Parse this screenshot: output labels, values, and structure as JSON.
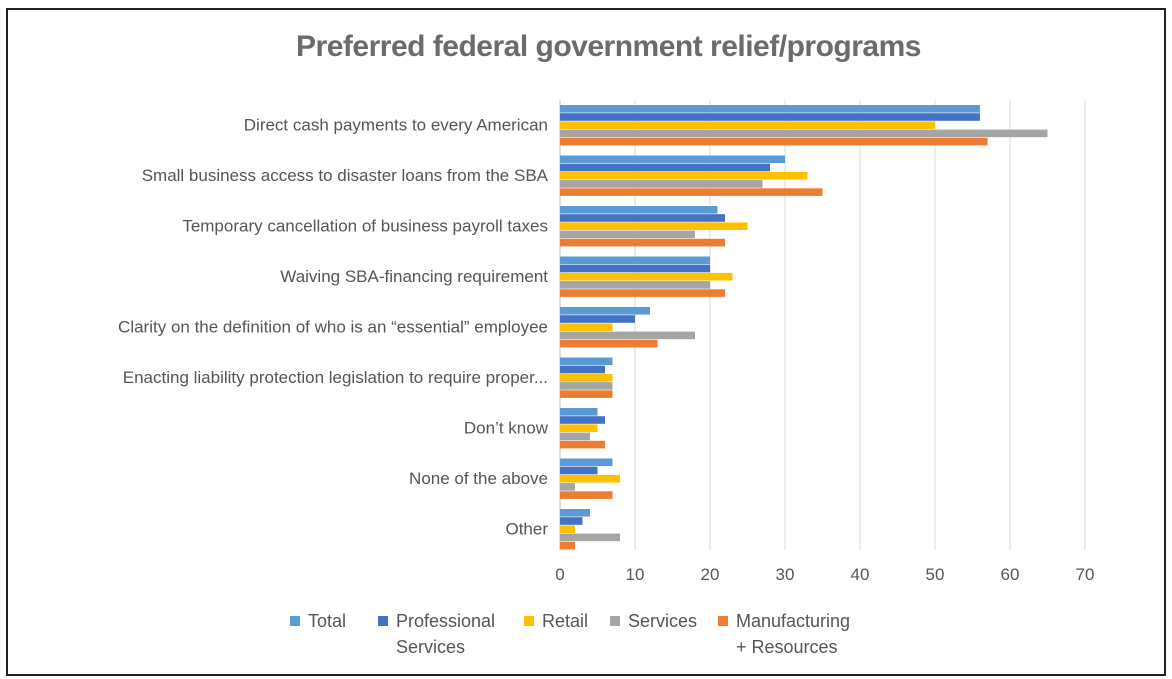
{
  "chart_data": {
    "type": "bar",
    "orientation": "horizontal",
    "title": "Preferred federal government relief/programs",
    "categories": [
      "Direct cash payments to every American",
      "Small business access to disaster loans from the SBA",
      "Temporary cancellation of business payroll taxes",
      "Waiving SBA-financing requirement",
      "Clarity on the definition of who is an “essential” employee",
      "Enacting liability protection legislation to require proper...",
      "Don’t know",
      "None of the above",
      "Other"
    ],
    "series": [
      {
        "name": "Total",
        "color": "#5B9BD5",
        "values": [
          56,
          30,
          21,
          20,
          12,
          7,
          5,
          7,
          4
        ]
      },
      {
        "name": "Professional Services",
        "color": "#4472C4",
        "values": [
          56,
          28,
          22,
          20,
          10,
          6,
          6,
          5,
          3
        ]
      },
      {
        "name": "Retail",
        "color": "#FFC000",
        "values": [
          50,
          33,
          25,
          23,
          7,
          7,
          5,
          8,
          2
        ]
      },
      {
        "name": "Services",
        "color": "#A5A5A5",
        "values": [
          65,
          27,
          18,
          20,
          18,
          7,
          4,
          2,
          8
        ]
      },
      {
        "name": "Manufacturing + Resources",
        "color": "#ED7D31",
        "values": [
          57,
          35,
          22,
          22,
          13,
          7,
          6,
          7,
          2
        ]
      }
    ],
    "xlim": [
      0,
      70
    ],
    "xticks": [
      "0",
      "10",
      "20",
      "30",
      "40",
      "50",
      "60",
      "70"
    ],
    "grid": true,
    "legend_position": "bottom"
  },
  "legend": {
    "total": "Total",
    "professional_line1": "Professional",
    "professional_line2": "Services",
    "retail": "Retail",
    "services": "Services",
    "manufacturing_line1": "Manufacturing",
    "manufacturing_line2": "+ Resources"
  }
}
